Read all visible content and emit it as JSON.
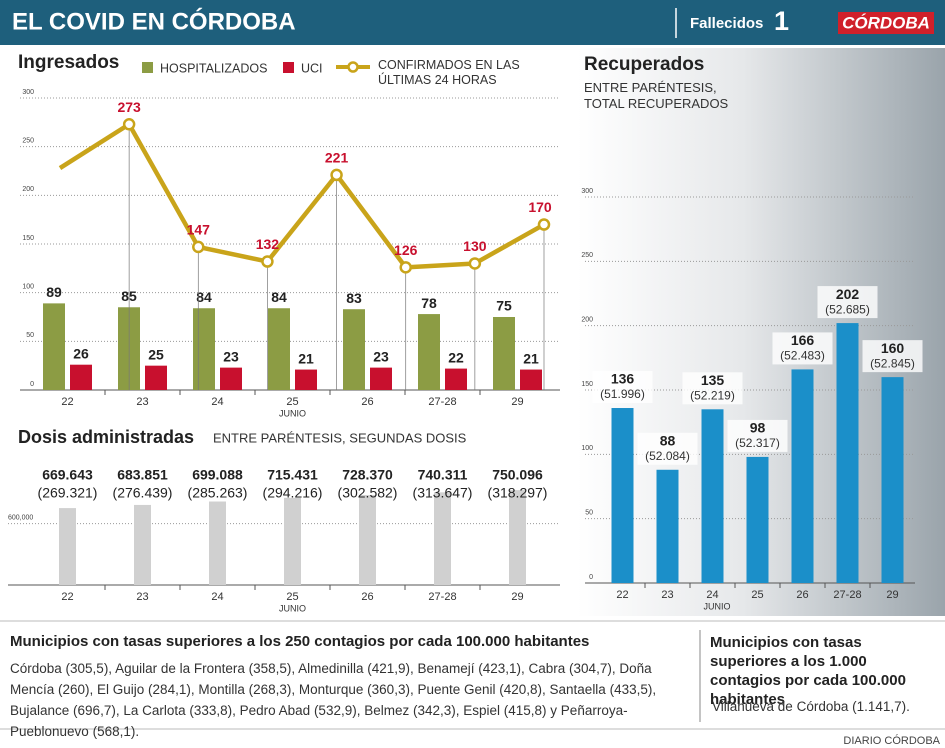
{
  "header": {
    "title": "EL COVID EN CÓRDOBA",
    "deaths_label": "Fallecidos",
    "deaths": 1,
    "brand": "CÓRDOBA"
  },
  "chart_data": [
    {
      "type": "bar",
      "title": "Ingresados",
      "categories": [
        "22",
        "23",
        "24",
        "25",
        "26",
        "27-28",
        "29"
      ],
      "x_note": "JUNIO",
      "series": [
        {
          "name": "HOSPITALIZADOS",
          "color": "#8c9c44",
          "values": [
            89,
            85,
            84,
            84,
            83,
            78,
            75
          ]
        },
        {
          "name": "UCI",
          "color": "#c8102e",
          "values": [
            26,
            25,
            23,
            21,
            23,
            22,
            21
          ]
        }
      ],
      "ylim": [
        0,
        300
      ],
      "yticks": [
        0,
        50,
        100,
        150,
        200,
        250,
        300
      ],
      "grid": true
    },
    {
      "type": "line",
      "categories": [
        null,
        null,
        null,
        null,
        null,
        null,
        null,
        null
      ],
      "series": [
        {
          "name": "CONFIRMADOS EN LAS ÚLTIMAS 24 HORAS",
          "color": "#c9a41a",
          "values": [
            228,
            273,
            147,
            132,
            221,
            126,
            130,
            170
          ],
          "value_labels": [
            null,
            "273",
            "147",
            "132",
            "221",
            "126",
            "130",
            "170"
          ]
        }
      ],
      "ylim": [
        0,
        300
      ]
    },
    {
      "type": "bar",
      "title": "Dosis administradas",
      "subtitle": "ENTRE PARÉNTESIS, SEGUNDAS DOSIS",
      "categories": [
        "22",
        "23",
        "24",
        "25",
        "26",
        "27-28",
        "29"
      ],
      "x_note": "JUNIO",
      "values": [
        669643,
        683851,
        699088,
        715431,
        728370,
        740311,
        750096
      ],
      "value_labels": [
        "669.643",
        "683.851",
        "699.088",
        "715.431",
        "728.370",
        "740.311",
        "750.096"
      ],
      "second_doses": [
        269321,
        276439,
        285263,
        294216,
        302582,
        313647,
        318297
      ],
      "second_dose_labels": [
        "(269.321)",
        "(276.439)",
        "(285.263)",
        "(294.216)",
        "(302.582)",
        "(313.647)",
        "(318.297)"
      ],
      "color": "#d0d0d0",
      "ylim": [
        325000,
        800000
      ],
      "yticks": [
        {
          "value": 600000,
          "label": "600,000"
        }
      ],
      "grid": true
    },
    {
      "type": "bar",
      "title": "Recuperados",
      "subtitle": "ENTRE PARÉNTESIS, TOTAL RECUPERADOS",
      "categories": [
        "22",
        "23",
        "24",
        "25",
        "26",
        "27-28",
        "29"
      ],
      "x_note": "JUNIO",
      "values": [
        136,
        88,
        135,
        98,
        166,
        202,
        160
      ],
      "totals": [
        51996,
        52084,
        52219,
        52317,
        52483,
        52685,
        52845
      ],
      "total_labels": [
        "(51.996)",
        "(52.084)",
        "(52.219)",
        "(52.317)",
        "(52.483)",
        "(52.685)",
        "(52.845)"
      ],
      "color": "#1b8fc9",
      "ylim": [
        0,
        300
      ],
      "yticks": [
        0,
        50,
        100,
        150,
        200,
        250,
        300
      ],
      "grid": true
    }
  ],
  "notes": [
    {
      "title": "Municipios con tasas superiores a los 250 contagios por cada 100.000 habitantes",
      "text": "Córdoba (305,5), Aguilar de la Frontera (358,5), Almedinilla (421,9), Benamejí (423,1), Cabra (304,7), Doña Mencía (260),  El Guijo (284,1), Montilla (268,3), Monturque (360,3), Puente Genil (420,8), Santaella (433,5), Bujalance (696,7), La Carlota (333,8), Pedro Abad (532,9), Belmez (342,3), Espiel (415,8) y Peñarroya-Pueblonuevo (568,1)."
    },
    {
      "title": "Municipios con tasas superiores a los 1.000 contagios por cada 100.000 habitantes",
      "text": "Villanueva de Córdoba (1.141,7)."
    }
  ],
  "footer": "DIARIO CÓRDOBA"
}
